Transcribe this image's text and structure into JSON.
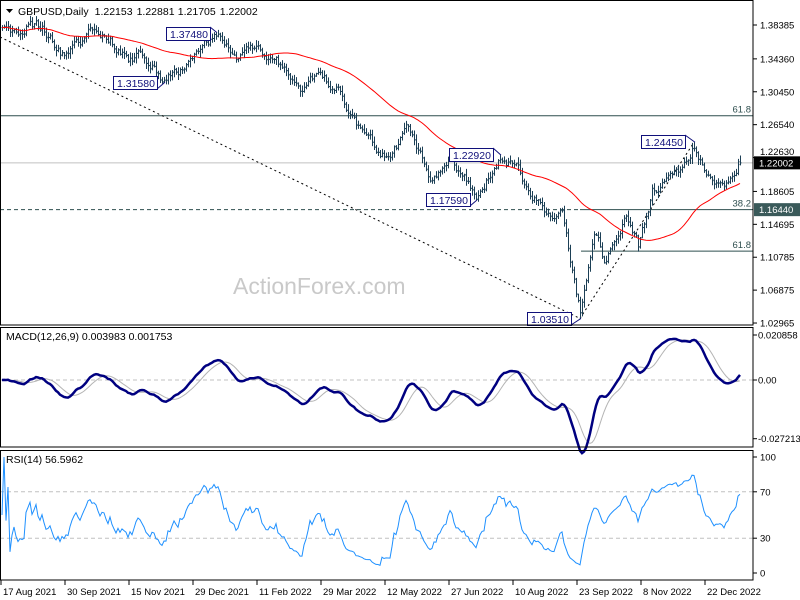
{
  "header": {
    "symbol": "GBPUSD,Daily",
    "open": "1.22153",
    "high": "1.22881",
    "low": "1.21705",
    "close": "1.22002",
    "menu_icon": "triangle-down-icon"
  },
  "watermark": "ActionForex.com",
  "colors": {
    "bars": "#1c3f55",
    "moving_average": "#ff0000",
    "macd_main": "#000080",
    "macd_signal": "#b4b4b4",
    "rsi": "#1e90ff",
    "annotation": "#10107a",
    "fib_line": "#2f4f4f",
    "current_price_box": "#000000",
    "fib_price_box": "#3a5a5a"
  },
  "macd": {
    "label": "MACD(12,26,9) 0.003983 0.001753",
    "ticks": [
      "0.020858",
      "0.00",
      "-0.027213"
    ]
  },
  "rsi": {
    "label": "RSI(14) 56.5962",
    "ticks": [
      "100",
      "70",
      "30",
      "0"
    ]
  },
  "chart_data": {
    "type": "ohlc-bar",
    "symbol": "GBPUSD",
    "timeframe": "Daily",
    "price_ticks": [
      "1.38385",
      "1.34360",
      "1.30450",
      "1.26540",
      "1.22630",
      "1.18605",
      "1.14695",
      "1.10785",
      "1.06875",
      "1.02965"
    ],
    "current_price": "1.22002",
    "marked_price": "1.16440",
    "time_labels": [
      "17 Aug 2021",
      "30 Sep 2021",
      "15 Nov 2021",
      "29 Dec 2021",
      "11 Feb 2022",
      "29 Mar 2022",
      "12 May 2022",
      "27 Jun 2022",
      "10 Aug 2022",
      "23 Sep 2022",
      "8 Nov 2022",
      "22 Dec 2022"
    ],
    "time_label_dates": [
      "2021-08-17",
      "2021-09-30",
      "2021-11-15",
      "2021-12-29",
      "2022-02-11",
      "2022-03-29",
      "2022-05-12",
      "2022-06-27",
      "2022-08-10",
      "2022-09-23",
      "2022-11-08",
      "2022-12-22"
    ],
    "last_bar": {
      "date": "2023-01-16",
      "open": 1.22153,
      "high": 1.22881,
      "low": 1.21705,
      "close": 1.22002
    },
    "price_path": [
      [
        "2021-08-17",
        1.376
      ],
      [
        "2021-08-24",
        1.372
      ],
      [
        "2021-09-03",
        1.386
      ],
      [
        "2021-09-14",
        1.382
      ],
      [
        "2021-09-29",
        1.346
      ],
      [
        "2021-10-08",
        1.362
      ],
      [
        "2021-10-20",
        1.381
      ],
      [
        "2021-11-01",
        1.368
      ],
      [
        "2021-11-12",
        1.342
      ],
      [
        "2021-11-19",
        1.346
      ],
      [
        "2021-12-08",
        1.32
      ],
      [
        "2021-12-20",
        1.33
      ],
      [
        "2022-01-13",
        1.371
      ],
      [
        "2022-01-27",
        1.342
      ],
      [
        "2022-02-10",
        1.356
      ],
      [
        "2022-02-24",
        1.343
      ],
      [
        "2022-03-15",
        1.304
      ],
      [
        "2022-03-23",
        1.324
      ],
      [
        "2022-04-07",
        1.308
      ],
      [
        "2022-04-28",
        1.25
      ],
      [
        "2022-05-13",
        1.221
      ],
      [
        "2022-05-27",
        1.262
      ],
      [
        "2022-06-14",
        1.198
      ],
      [
        "2022-06-27",
        1.226
      ],
      [
        "2022-07-14",
        1.182
      ],
      [
        "2022-08-01",
        1.224
      ],
      [
        "2022-08-12",
        1.21
      ],
      [
        "2022-08-23",
        1.176
      ],
      [
        "2022-09-07",
        1.152
      ],
      [
        "2022-09-13",
        1.16
      ],
      [
        "2022-09-26",
        1.045
      ],
      [
        "2022-10-05",
        1.14
      ],
      [
        "2022-10-12",
        1.105
      ],
      [
        "2022-10-27",
        1.156
      ],
      [
        "2022-11-04",
        1.122
      ],
      [
        "2022-11-15",
        1.186
      ],
      [
        "2022-11-30",
        1.205
      ],
      [
        "2022-12-14",
        1.24
      ],
      [
        "2022-12-22",
        1.207
      ],
      [
        "2023-01-06",
        1.196
      ],
      [
        "2023-01-16",
        1.22
      ]
    ],
    "moving_average_period": 55,
    "annotations": [
      {
        "text": "1.37480",
        "date": "2022-01-13",
        "kind": "high",
        "price": 1.3748
      },
      {
        "text": "1.31580",
        "date": "2021-12-08",
        "kind": "low",
        "price": 1.3158
      },
      {
        "text": "1.22920",
        "date": "2022-08-01",
        "kind": "high",
        "price": 1.2292
      },
      {
        "text": "1.17590",
        "date": "2022-07-14",
        "kind": "low",
        "price": 1.1759
      },
      {
        "text": "1.24450",
        "date": "2022-12-14",
        "kind": "high",
        "price": 1.2445
      },
      {
        "text": "1.03510",
        "date": "2022-09-26",
        "kind": "low",
        "price": 1.0351
      }
    ],
    "fib_levels": [
      {
        "label": "61.8",
        "price": 1.276
      },
      {
        "label": "38.2",
        "price": 1.1644
      },
      {
        "label": "61.8",
        "price": 1.1151
      }
    ],
    "macd_range": [
      -0.027213,
      0.020858
    ],
    "rsi_range": [
      0,
      100
    ],
    "rsi_levels": [
      70,
      30
    ],
    "grid": false
  }
}
